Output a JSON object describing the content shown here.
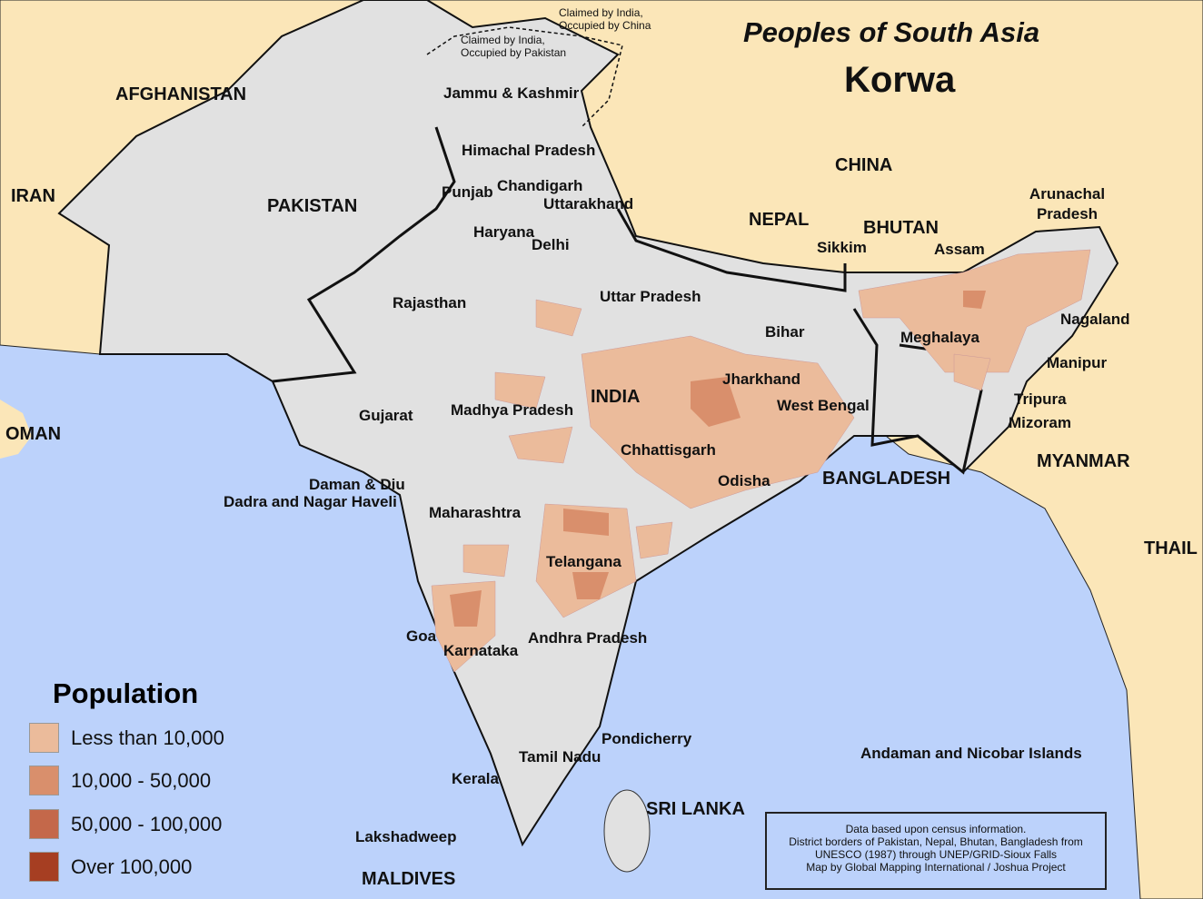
{
  "title": "Peoples of South Asia",
  "subtitle": "Korwa",
  "colors": {
    "sea": "#bcd2fb",
    "foreign_land": "#fbe6b8",
    "south_asia_land": "#e1e1e1",
    "border": "#111111"
  },
  "countries": [
    "AFGHANISTAN",
    "IRAN",
    "PAKISTAN",
    "CHINA",
    "NEPAL",
    "BHUTAN",
    "INDIA",
    "BANGLADESH",
    "MYANMAR",
    "THAIL",
    "OMAN",
    "SRI LANKA",
    "MALDIVES"
  ],
  "regions": [
    "Jammu & Kashmir",
    "Himachal Pradesh",
    "Punjab",
    "Chandigarh",
    "Uttarakhand",
    "Haryana",
    "Delhi",
    "Rajasthan",
    "Uttar Pradesh",
    "Sikkim",
    "Arunachal Pradesh",
    "Assam",
    "Nagaland",
    "Meghalaya",
    "Manipur",
    "Bihar",
    "Jharkhand",
    "West Bengal",
    "Tripura",
    "Mizoram",
    "Gujarat",
    "Madhya Pradesh",
    "Chhattisgarh",
    "Odisha",
    "Daman & Diu",
    "Dadra and Nagar Haveli",
    "Maharashtra",
    "Telangana",
    "Goa",
    "Karnataka",
    "Andhra Pradesh",
    "Pondicherry",
    "Tamil Nadu",
    "Kerala",
    "Lakshadweep",
    "Andaman and Nicobar Islands"
  ],
  "disputed": [
    "Claimed by India, Occupied by China",
    "Claimed by India, Occupied by Pakistan"
  ],
  "legend": {
    "title": "Population",
    "items": [
      {
        "label": "Less than 10,000",
        "color": "#ebbb9b"
      },
      {
        "label": "10,000 - 50,000",
        "color": "#d98f6c"
      },
      {
        "label": "50,000 - 100,000",
        "color": "#c4684a"
      },
      {
        "label": "Over 100,000",
        "color": "#a63e22"
      }
    ]
  },
  "credits": [
    "Data based upon census information.",
    "District borders of Pakistan, Nepal, Bhutan, Bangladesh from",
    "UNESCO (1987) through UNEP/GRID-Sioux Falls",
    "Map by Global Mapping International / Joshua Project"
  ]
}
